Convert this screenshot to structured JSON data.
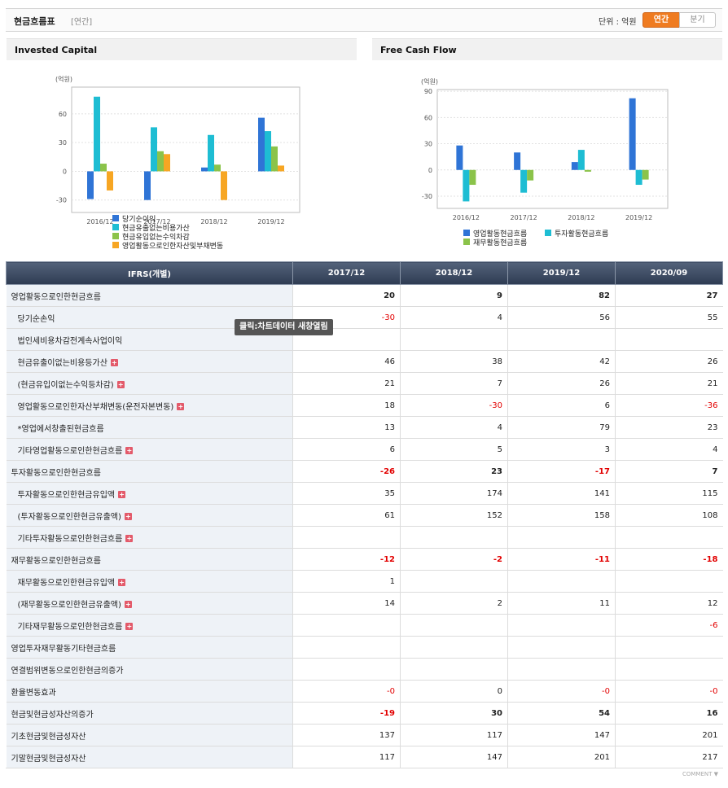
{
  "header": {
    "title": "현금흐름표",
    "subtitle": "[연간]",
    "unit": "단위 : 억원",
    "annual_label": "연간",
    "quarter_label": "분기"
  },
  "tooltip": "클릭:차트데이터 새창열림",
  "comment": "COMMENT ▼",
  "colors": {
    "blue": "#2f74d6",
    "cyan": "#1ebdd3",
    "green": "#8bc34a",
    "orange": "#f7a623"
  },
  "chart_data": [
    {
      "type": "bar",
      "title": "Invested Capital",
      "ylabel": "(억원)",
      "categories": [
        "2016/12",
        "2017/12",
        "2018/12",
        "2019/12"
      ],
      "yticks": [
        60,
        30,
        0,
        -30
      ],
      "ylim": [
        -43,
        88
      ],
      "series": [
        {
          "name": "당기순이익",
          "color": "#2f74d6",
          "values": [
            -29,
            -30,
            4,
            56
          ]
        },
        {
          "name": "현금유출없는비용가산",
          "color": "#1ebdd3",
          "values": [
            78,
            46,
            38,
            42
          ]
        },
        {
          "name": "현금유입없는수익차감",
          "color": "#8bc34a",
          "values": [
            8,
            21,
            7,
            26
          ]
        },
        {
          "name": "영업활동으로인한자산및부채변동",
          "color": "#f7a623",
          "values": [
            -20,
            18,
            -30,
            6
          ]
        }
      ]
    },
    {
      "type": "bar",
      "title": "Free Cash Flow",
      "ylabel": "(억원)",
      "categories": [
        "2016/12",
        "2017/12",
        "2018/12",
        "2019/12"
      ],
      "yticks": [
        90,
        60,
        30,
        0,
        -30
      ],
      "ylim": [
        -44,
        92
      ],
      "series": [
        {
          "name": "영업활동현금흐름",
          "color": "#2f74d6",
          "values": [
            28,
            20,
            9,
            82
          ]
        },
        {
          "name": "투자활동현금흐름",
          "color": "#1ebdd3",
          "values": [
            -36,
            -26,
            23,
            -17
          ]
        },
        {
          "name": "재무활동현금흐름",
          "color": "#8bc34a",
          "values": [
            -17,
            -12,
            -2,
            -11
          ]
        }
      ]
    }
  ],
  "table": {
    "headers": [
      "IFRS(개별)",
      "2017/12",
      "2018/12",
      "2019/12",
      "2020/09"
    ],
    "rows": [
      {
        "label": "영업활동으로인한현금흐름",
        "values": [
          "20",
          "9",
          "82",
          "27"
        ],
        "bold": true,
        "indent": false,
        "plus": false
      },
      {
        "label": "당기순손익",
        "values": [
          "-30",
          "4",
          "56",
          "55"
        ],
        "bold": false,
        "indent": true,
        "plus": false
      },
      {
        "label": "법인세비용차감전계속사업이익",
        "values": [
          "",
          "",
          "",
          ""
        ],
        "bold": false,
        "indent": true,
        "plus": false
      },
      {
        "label": "현금유출이없는비용등가산",
        "values": [
          "46",
          "38",
          "42",
          "26"
        ],
        "bold": false,
        "indent": true,
        "plus": true
      },
      {
        "label": "(현금유입이없는수익등차감)",
        "values": [
          "21",
          "7",
          "26",
          "21"
        ],
        "bold": false,
        "indent": true,
        "plus": true
      },
      {
        "label": "영업활동으로인한자산부채변동(운전자본변동)",
        "values": [
          "18",
          "-30",
          "6",
          "-36"
        ],
        "bold": false,
        "indent": true,
        "plus": true
      },
      {
        "label": "*영업에서창출된현금흐름",
        "values": [
          "13",
          "4",
          "79",
          "23"
        ],
        "bold": false,
        "indent": true,
        "plus": false
      },
      {
        "label": "기타영업활동으로인한현금흐름",
        "values": [
          "6",
          "5",
          "3",
          "4"
        ],
        "bold": false,
        "indent": true,
        "plus": true
      },
      {
        "label": "투자활동으로인한현금흐름",
        "values": [
          "-26",
          "23",
          "-17",
          "7"
        ],
        "bold": true,
        "indent": false,
        "plus": false
      },
      {
        "label": "투자활동으로인한현금유입액",
        "values": [
          "35",
          "174",
          "141",
          "115"
        ],
        "bold": false,
        "indent": true,
        "plus": true
      },
      {
        "label": "(투자활동으로인한현금유출액)",
        "values": [
          "61",
          "152",
          "158",
          "108"
        ],
        "bold": false,
        "indent": true,
        "plus": true
      },
      {
        "label": "기타투자활동으로인한현금흐름",
        "values": [
          "",
          "",
          "",
          ""
        ],
        "bold": false,
        "indent": true,
        "plus": true
      },
      {
        "label": "재무활동으로인한현금흐름",
        "values": [
          "-12",
          "-2",
          "-11",
          "-18"
        ],
        "bold": true,
        "indent": false,
        "plus": false
      },
      {
        "label": "재무활동으로인한현금유입액",
        "values": [
          "1",
          "",
          "",
          ""
        ],
        "bold": false,
        "indent": true,
        "plus": true
      },
      {
        "label": "(재무활동으로인한현금유출액)",
        "values": [
          "14",
          "2",
          "11",
          "12"
        ],
        "bold": false,
        "indent": true,
        "plus": true
      },
      {
        "label": "기타재무활동으로인한현금흐름",
        "values": [
          "",
          "",
          "",
          "-6"
        ],
        "bold": false,
        "indent": true,
        "plus": true
      },
      {
        "label": "영업투자재무활동기타현금흐름",
        "values": [
          "",
          "",
          "",
          ""
        ],
        "bold": false,
        "indent": false,
        "plus": false
      },
      {
        "label": "연결범위변동으로인한현금의증가",
        "values": [
          "",
          "",
          "",
          ""
        ],
        "bold": false,
        "indent": false,
        "plus": false
      },
      {
        "label": "환율변동효과",
        "values": [
          "-0",
          "0",
          "-0",
          "-0"
        ],
        "bold": false,
        "indent": false,
        "plus": false
      },
      {
        "label": "현금및현금성자산의증가",
        "values": [
          "-19",
          "30",
          "54",
          "16"
        ],
        "bold": true,
        "indent": false,
        "plus": false
      },
      {
        "label": "기초현금및현금성자산",
        "values": [
          "137",
          "117",
          "147",
          "201"
        ],
        "bold": false,
        "indent": false,
        "plus": false
      },
      {
        "label": "기말현금및현금성자산",
        "values": [
          "117",
          "147",
          "201",
          "217"
        ],
        "bold": false,
        "indent": false,
        "plus": false
      }
    ]
  }
}
